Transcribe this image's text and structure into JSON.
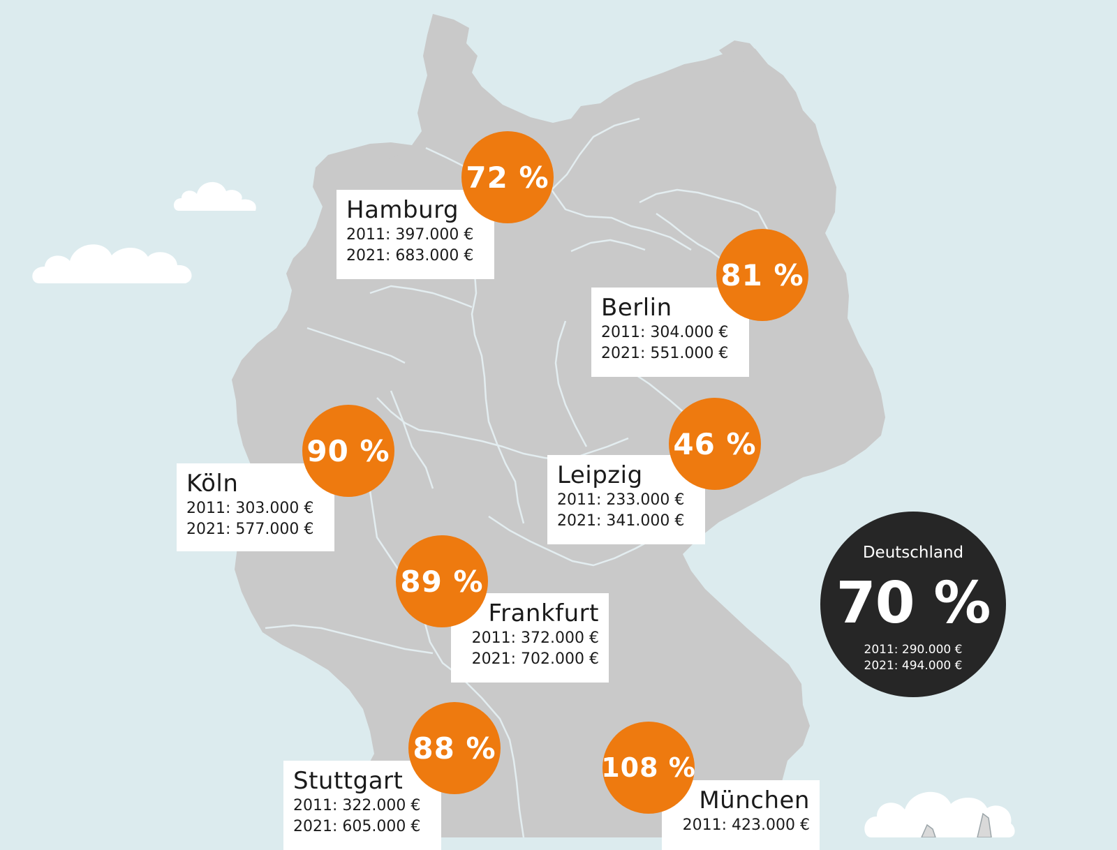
{
  "colors": {
    "background": "#dcebee",
    "land": "#c9c9c9",
    "border": "#e3edf0",
    "badge": "#ee7a0f",
    "national_badge": "#262626",
    "label_box": "#ffffff"
  },
  "cities": [
    {
      "name": "Hamburg",
      "percent": "72 %",
      "line2011": "2011: 397.000 €",
      "line2021": "2021: 683.000 €"
    },
    {
      "name": "Berlin",
      "percent": "81 %",
      "line2011": "2011: 304.000 €",
      "line2021": "2021: 551.000 €"
    },
    {
      "name": "Köln",
      "percent": "90 %",
      "line2011": "2011: 303.000 €",
      "line2021": "2021: 577.000 €"
    },
    {
      "name": "Leipzig",
      "percent": "46 %",
      "line2011": "2011: 233.000 €",
      "line2021": "2021: 341.000 €"
    },
    {
      "name": "Frankfurt",
      "percent": "89 %",
      "line2011": "2011: 372.000 €",
      "line2021": "2021: 702.000 €"
    },
    {
      "name": "Stuttgart",
      "percent": "88 %",
      "line2011": "2011: 322.000 €",
      "line2021": "2021: 605.000 €"
    },
    {
      "name": "München",
      "percent": "108 %",
      "line2011": "2011: 423.000 €"
    }
  ],
  "national": {
    "label": "Deutschland",
    "percent": "70 %",
    "line2011": "2011: 290.000 €",
    "line2021": "2021: 494.000 €"
  },
  "icons": [
    "cloud-icon",
    "airplane-icon"
  ]
}
